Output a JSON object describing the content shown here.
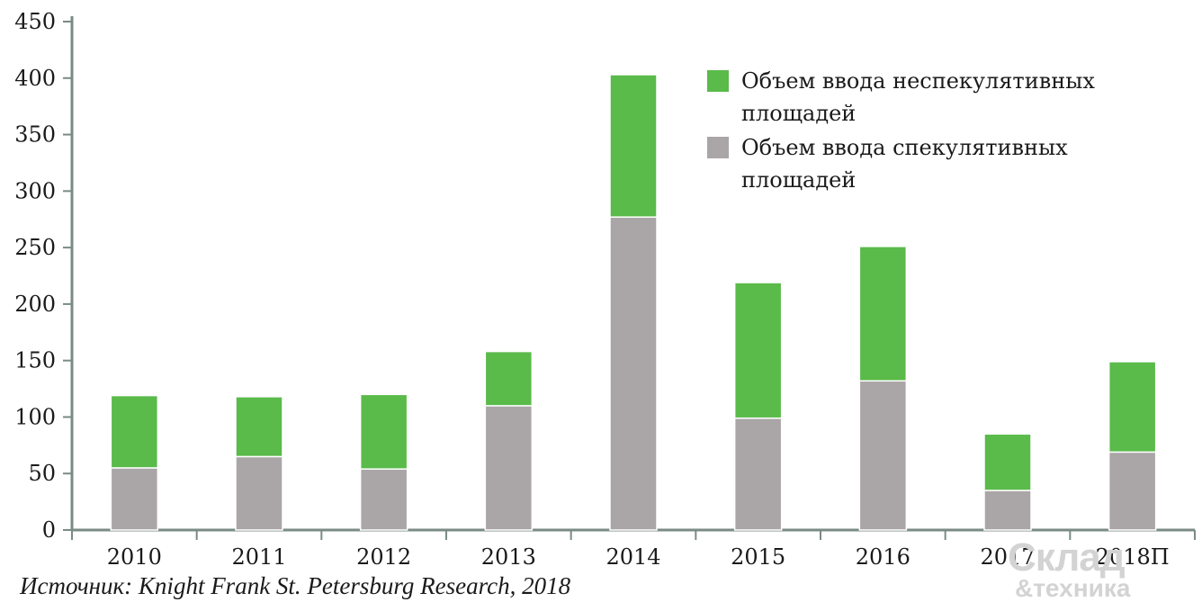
{
  "chart_data": {
    "type": "bar",
    "stacked": true,
    "categories": [
      "2010",
      "2011",
      "2012",
      "2013",
      "2014",
      "2015",
      "2016",
      "2017",
      "2018П"
    ],
    "series": [
      {
        "name": "Объем ввода спекулятивных площадей",
        "color": "#aaa5a6",
        "values": [
          55,
          65,
          54,
          110,
          277,
          99,
          132,
          35,
          69
        ]
      },
      {
        "name": "Объем ввода неспекулятивных площадей",
        "color": "#5aba4a",
        "values": [
          64,
          53,
          66,
          48,
          126,
          120,
          119,
          50,
          80
        ]
      }
    ],
    "ylim": [
      0,
      450
    ],
    "yticks": [
      0,
      50,
      100,
      150,
      200,
      250,
      300,
      350,
      400,
      450
    ],
    "grid": false,
    "legend_position": "top-right",
    "legend": [
      {
        "lines": [
          "Объем ввода неспекулятивных",
          "площадей"
        ],
        "color": "#5aba4a"
      },
      {
        "lines": [
          "Объем ввода спекулятивных",
          "площадей"
        ],
        "color": "#aaa5a6"
      }
    ],
    "axis_color": "#7a8a84"
  },
  "source_text": "Источник: Knight Frank St. Petersburg Research, 2018",
  "watermark": {
    "line1": "Склад",
    "line2": "&техника"
  }
}
